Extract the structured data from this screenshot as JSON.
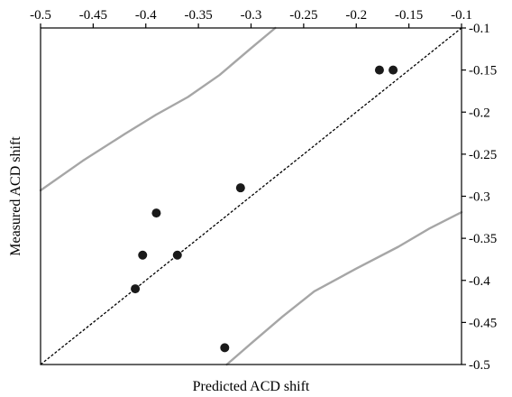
{
  "chart_data": {
    "type": "scatter",
    "title": "",
    "xlabel": "Predicted ACD shift",
    "ylabel": "Measured ACD shift",
    "xlim": [
      -0.5,
      -0.1
    ],
    "ylim": [
      -0.5,
      -0.1
    ],
    "x_axis_position": "top",
    "y_axis_position": "right",
    "grid": false,
    "legend": "none",
    "x_ticks": [
      -0.5,
      -0.45,
      -0.4,
      -0.35,
      -0.3,
      -0.25,
      -0.2,
      -0.15,
      -0.1
    ],
    "x_tick_labels": [
      "-0.5",
      "-0.45",
      "-0.4",
      "-0.35",
      "-0.3",
      "-0.25",
      "-0.2",
      "-0.15",
      "-0.1"
    ],
    "y_ticks": [
      -0.1,
      -0.15,
      -0.2,
      -0.25,
      -0.3,
      -0.35,
      -0.4,
      -0.45,
      -0.5
    ],
    "y_tick_labels": [
      "-0.1",
      "-0.15",
      "-0.2",
      "-0.25",
      "-0.3",
      "-0.35",
      "-0.4",
      "-0.45",
      "-0.5"
    ],
    "points": [
      {
        "x": -0.178,
        "y": -0.15
      },
      {
        "x": -0.165,
        "y": -0.15
      },
      {
        "x": -0.31,
        "y": -0.29
      },
      {
        "x": -0.39,
        "y": -0.32
      },
      {
        "x": -0.403,
        "y": -0.37
      },
      {
        "x": -0.37,
        "y": -0.37
      },
      {
        "x": -0.41,
        "y": -0.41
      },
      {
        "x": -0.325,
        "y": -0.48
      }
    ],
    "identity_line": {
      "x": [
        -0.5,
        -0.1
      ],
      "y": [
        -0.5,
        -0.1
      ],
      "style": "dashed",
      "color": "#000000"
    },
    "upper_band": {
      "color": "#a6a6a6",
      "x": [
        -0.5,
        -0.46,
        -0.42,
        -0.39,
        -0.36,
        -0.33,
        -0.3,
        -0.277
      ],
      "y": [
        -0.293,
        -0.258,
        -0.226,
        -0.203,
        -0.182,
        -0.156,
        -0.124,
        -0.1
      ]
    },
    "lower_band": {
      "color": "#a6a6a6",
      "x": [
        -0.323,
        -0.3,
        -0.27,
        -0.24,
        -0.2,
        -0.16,
        -0.13,
        -0.1
      ],
      "y": [
        -0.5,
        -0.475,
        -0.443,
        -0.413,
        -0.386,
        -0.36,
        -0.338,
        -0.319
      ]
    },
    "colors": {
      "points": "#1a1a1a",
      "axes": "#000000"
    }
  }
}
